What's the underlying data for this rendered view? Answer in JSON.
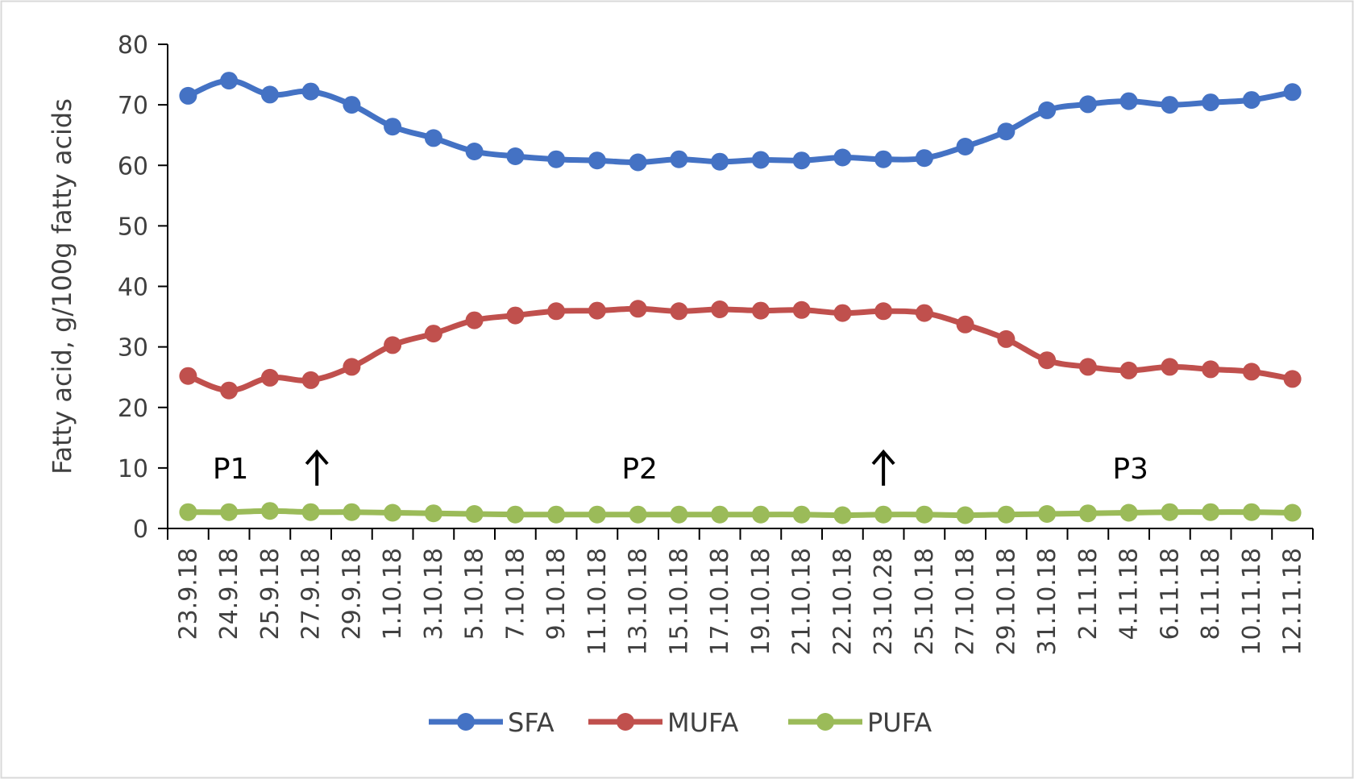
{
  "chart_data": {
    "type": "line",
    "title": "",
    "ylabel": "Fatty acid, g/100g fatty acids",
    "xlabel": "",
    "ylim": [
      0,
      80
    ],
    "yticks": [
      "0",
      "10",
      "20",
      "30",
      "40",
      "50",
      "60",
      "70",
      "80"
    ],
    "grid": false,
    "legend_position": "bottom",
    "categories": [
      "23.9.18",
      "24.9.18",
      "25.9.18",
      "27.9.18",
      "29.9.18",
      "1.10.18",
      "3.10.18",
      "5.10.18",
      "7.10.18",
      "9.10.18",
      "11.10.18",
      "13.10.18",
      "15.10.18",
      "17.10.18",
      "19.10.18",
      "21.10.18",
      "22.10.18",
      "23.10.28",
      "25.10.18",
      "27.10.18",
      "29.10.18",
      "31.10.18",
      "2.11.18",
      "4.11.18",
      "6.11.18",
      "8.11.18",
      "10.11.18",
      "12.11.18"
    ],
    "series": [
      {
        "name": "SFA",
        "color": "#4472C4",
        "values": [
          71.5,
          74.0,
          71.7,
          72.2,
          70.0,
          66.4,
          64.5,
          62.3,
          61.5,
          61.0,
          60.8,
          60.5,
          61.0,
          60.6,
          60.9,
          60.8,
          61.3,
          61.0,
          61.2,
          63.1,
          65.6,
          69.1,
          70.1,
          70.6,
          70.0,
          70.4,
          70.8,
          72.1
        ]
      },
      {
        "name": "MUFA",
        "color": "#C0504D",
        "values": [
          25.2,
          22.8,
          24.9,
          24.5,
          26.7,
          30.3,
          32.2,
          34.4,
          35.2,
          35.9,
          36.0,
          36.3,
          35.9,
          36.2,
          36.0,
          36.1,
          35.6,
          35.9,
          35.6,
          33.7,
          31.3,
          27.8,
          26.7,
          26.1,
          26.7,
          26.3,
          25.9,
          24.7
        ]
      },
      {
        "name": "PUFA",
        "color": "#9BBB59",
        "values": [
          2.7,
          2.7,
          2.9,
          2.7,
          2.7,
          2.6,
          2.5,
          2.4,
          2.3,
          2.3,
          2.3,
          2.3,
          2.3,
          2.3,
          2.3,
          2.3,
          2.2,
          2.3,
          2.3,
          2.2,
          2.3,
          2.4,
          2.5,
          2.6,
          2.7,
          2.7,
          2.7,
          2.6
        ]
      }
    ],
    "annotations": [
      {
        "text": "P1",
        "category_index": 1,
        "y": 10
      },
      {
        "text": "P2",
        "category_index": 11,
        "y": 10
      },
      {
        "text": "P3",
        "category_index": 23,
        "y": 10
      }
    ],
    "markers": [
      {
        "symbol": "↑",
        "category_index": 3.15,
        "y": 10
      },
      {
        "symbol": "↑",
        "category_index": 17,
        "y": 10
      }
    ]
  }
}
